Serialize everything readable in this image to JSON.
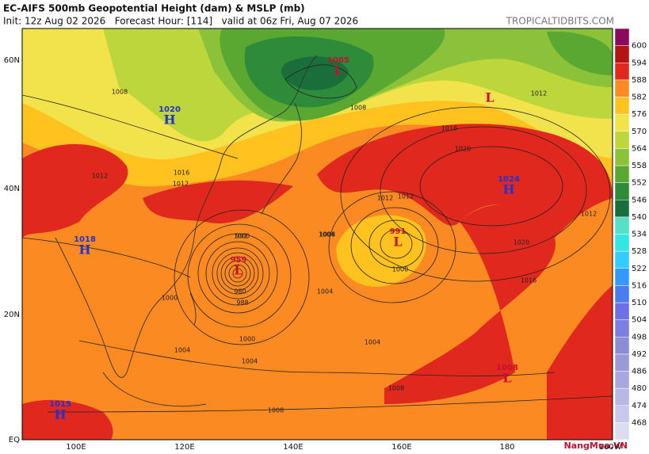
{
  "header": {
    "title": "EC-AIFS 500mb Geopotential Height (dam) & MSLP (mb)",
    "subtitle": "Init: 12z Aug 02 2026   Forecast Hour: [114]   valid at 06z Fri, Aug 07 2026",
    "site": "TROPICALTIDBITS.COM"
  },
  "axes": {
    "lon_labels": [
      "100E",
      "120E",
      "140E",
      "160E",
      "180",
      "160W"
    ],
    "lat_labels": [
      "60N",
      "40N",
      "20N",
      "EQ"
    ]
  },
  "colorbar": {
    "levels": [
      468,
      474,
      480,
      486,
      492,
      498,
      504,
      510,
      516,
      522,
      528,
      534,
      540,
      546,
      552,
      558,
      564,
      570,
      576,
      582,
      588,
      594,
      600
    ],
    "colors": [
      "#dcdcf0",
      "#c8c8ec",
      "#b8b8e6",
      "#a8a8e0",
      "#9a9ada",
      "#8c8cd6",
      "#7e7ee0",
      "#6f6fe8",
      "#4a7cf0",
      "#3399ff",
      "#33ccff",
      "#33e6e6",
      "#55e0c8",
      "#1a6e3a",
      "#2e8b3a",
      "#5aa832",
      "#8cc23a",
      "#bcd63c",
      "#f2e24c",
      "#ffc21e",
      "#fb8a22",
      "#e0281e",
      "#b51414",
      "#8b0a5a"
    ]
  },
  "centers": [
    {
      "type": "H",
      "value": 1020
    },
    {
      "type": "H",
      "value": 1024
    },
    {
      "type": "H",
      "value": 1018
    },
    {
      "type": "H",
      "value": 1015
    },
    {
      "type": "L",
      "value": 1005
    },
    {
      "type": "L",
      "value": 959
    },
    {
      "type": "L",
      "value": 991
    },
    {
      "type": "L",
      "value": 1008
    },
    {
      "type": "L",
      "value": null
    }
  ],
  "contour_labels": [
    1012,
    1008,
    1012,
    1016,
    1020,
    1012,
    1016,
    1020,
    1008,
    1012,
    1004,
    1000,
    1004,
    1000,
    992,
    980,
    988,
    1000,
    1004,
    1008,
    1004,
    1000,
    1008,
    1012,
    1016,
    1012,
    1008,
    1004
  ],
  "watermark": "NangMua.VN"
}
